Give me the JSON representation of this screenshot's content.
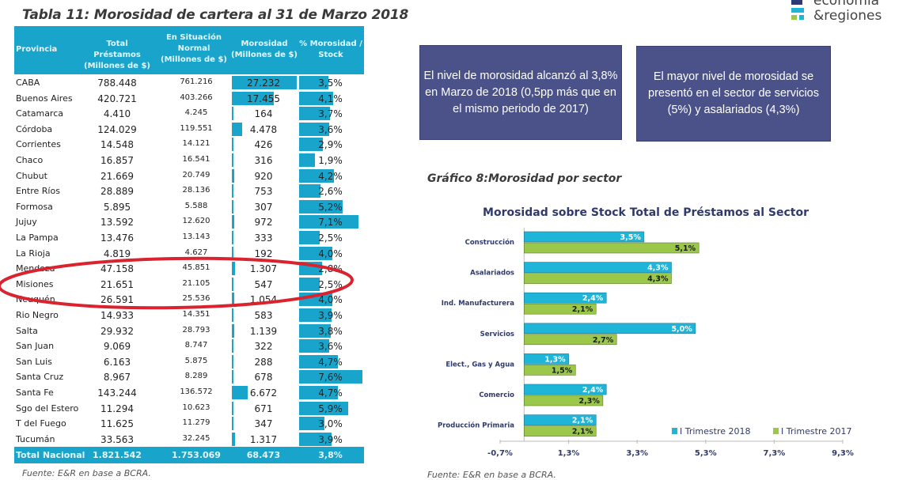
{
  "table": {
    "title": "Tabla 11: Morosidad de cartera al 31 de Marzo 2018",
    "headers": [
      "Provincia",
      "Total Préstamos (Millones de $)",
      "En Situación Normal (Millones de $)",
      "Morosidad (Millones de $)",
      "% Morosidad / Stock"
    ],
    "rows": [
      [
        "CABA",
        "788.448",
        "761.216",
        "27.232",
        "3,5%",
        27232,
        3.5
      ],
      [
        "Buenos Aires",
        "420.721",
        "403.266",
        "17.455",
        "4,1%",
        17455,
        4.1
      ],
      [
        "Catamarca",
        "4.410",
        "4.245",
        "164",
        "3,7%",
        164,
        3.7
      ],
      [
        "Córdoba",
        "124.029",
        "119.551",
        "4.478",
        "3,6%",
        4478,
        3.6
      ],
      [
        "Corrientes",
        "14.548",
        "14.121",
        "426",
        "2,9%",
        426,
        2.9
      ],
      [
        "Chaco",
        "16.857",
        "16.541",
        "316",
        "1,9%",
        316,
        1.9
      ],
      [
        "Chubut",
        "21.669",
        "20.749",
        "920",
        "4,2%",
        920,
        4.2
      ],
      [
        "Entre Ríos",
        "28.889",
        "28.136",
        "753",
        "2,6%",
        753,
        2.6
      ],
      [
        "Formosa",
        "5.895",
        "5.588",
        "307",
        "5,2%",
        307,
        5.2
      ],
      [
        "Jujuy",
        "13.592",
        "12.620",
        "972",
        "7,1%",
        972,
        7.1
      ],
      [
        "La Pampa",
        "13.476",
        "13.143",
        "333",
        "2,5%",
        333,
        2.5
      ],
      [
        "La Rioja",
        "4.819",
        "4.627",
        "192",
        "4,0%",
        192,
        4.0
      ],
      [
        "Mendoza",
        "47.158",
        "45.851",
        "1.307",
        "2,8%",
        1307,
        2.8
      ],
      [
        "Misiones",
        "21.651",
        "21.105",
        "547",
        "2,5%",
        547,
        2.5
      ],
      [
        "Neuquén",
        "26.591",
        "25.536",
        "1.054",
        "4,0%",
        1054,
        4.0
      ],
      [
        "Rio Negro",
        "14.933",
        "14.351",
        "583",
        "3,9%",
        583,
        3.9
      ],
      [
        "Salta",
        "29.932",
        "28.793",
        "1.139",
        "3,8%",
        1139,
        3.8
      ],
      [
        "San Juan",
        "9.069",
        "8.747",
        "322",
        "3,6%",
        322,
        3.6
      ],
      [
        "San Luis",
        "6.163",
        "5.875",
        "288",
        "4,7%",
        288,
        4.7
      ],
      [
        "Santa Cruz",
        "8.967",
        "8.289",
        "678",
        "7,6%",
        678,
        7.6
      ],
      [
        "Santa Fe",
        "143.244",
        "136.572",
        "6.672",
        "4,7%",
        6672,
        4.7
      ],
      [
        "Sgo del Estero",
        "11.294",
        "10.623",
        "671",
        "5,9%",
        671,
        5.9
      ],
      [
        "T del Fuego",
        "11.625",
        "11.279",
        "347",
        "3,0%",
        347,
        3.0
      ],
      [
        "Tucumán",
        "33.563",
        "32.245",
        "1.317",
        "3,9%",
        1317,
        3.9
      ]
    ],
    "total": [
      "Total Nacional",
      "1.821.542",
      "1.753.069",
      "68.473",
      "3,8%"
    ],
    "source": "Fuente: E&R en base a BCRA.",
    "highlight_color": "#d9232e",
    "bar_color": "#19a4cc"
  },
  "boxes": [
    "El nivel de morosidad alcanzó al 3,8% en Marzo de 2018 (0,5pp más que en el  mismo periodo de 2017)",
    "El mayor nivel de morosidad se  presentó en el sector de servicios (5%) y asalariados (4,3%)"
  ],
  "logo": {
    "line1": "economía",
    "line2": "&regiones"
  },
  "graph_caption": "Gráfico 8:Morosidad por sector",
  "graph_source": "Fuente: E&R en base a BCRA.",
  "chart_data": {
    "type": "bar",
    "orientation": "horizontal",
    "title": "Morosidad sobre Stock Total de Préstamos al Sector",
    "categories": [
      "Construcción",
      "Asalariados",
      "Ind. Manufacturera",
      "Servicios",
      "Elect., Gas y Agua",
      "Comercio",
      "Producción Primaria"
    ],
    "series": [
      {
        "name": "I Trimestre 2018",
        "color": "#1fb5d8",
        "values": [
          3.5,
          4.3,
          2.4,
          5.0,
          1.3,
          2.4,
          2.1
        ],
        "labels": [
          "3,5%",
          "4,3%",
          "2,4%",
          "5,0%",
          "1,3%",
          "2,4%",
          "2,1%"
        ]
      },
      {
        "name": "I Trimestre 2017",
        "color": "#9bc84a",
        "values": [
          5.1,
          4.3,
          2.1,
          2.7,
          1.5,
          2.3,
          2.1
        ],
        "labels": [
          "5,1%",
          "4,3%",
          "2,1%",
          "2,7%",
          "1,5%",
          "2,3%",
          "2,1%"
        ]
      }
    ],
    "xticks": [
      "-0,7%",
      "1,3%",
      "3,3%",
      "5,3%",
      "7,3%",
      "9,3%"
    ],
    "xlim": [
      -0.7,
      9.3
    ],
    "legend": "bottom-right",
    "grid": false
  }
}
